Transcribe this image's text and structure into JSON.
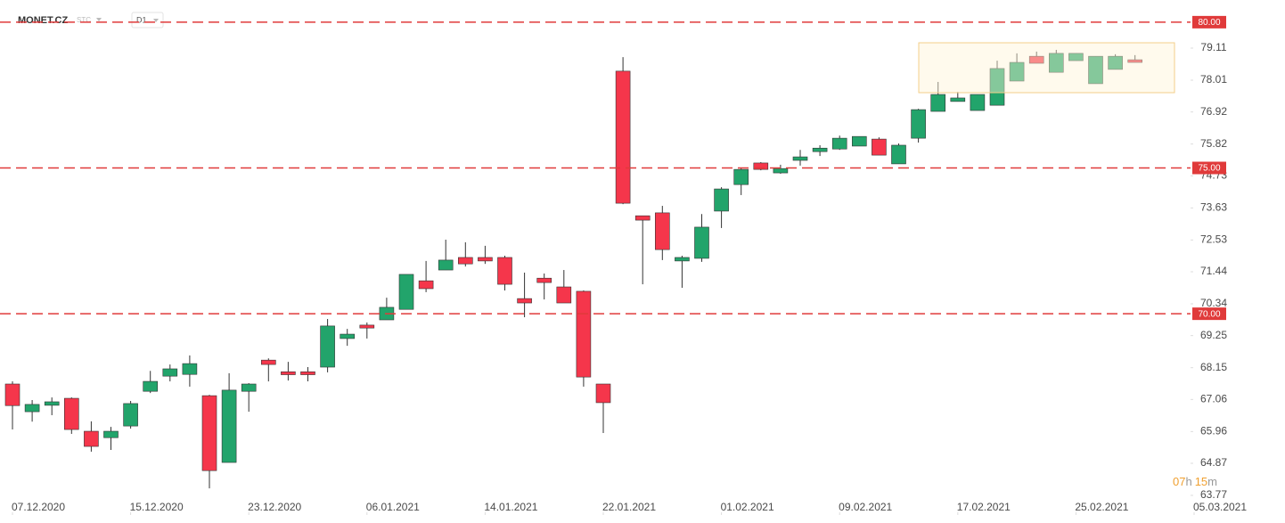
{
  "chart_data": {
    "type": "candlestick",
    "symbol": "MONET.CZ",
    "exchange": "STC",
    "timeframe": "D1",
    "countdown": [
      "07",
      "h",
      "15",
      "m"
    ],
    "up_color": "#22a46b",
    "down_color": "#f5364b",
    "open": [
      67.59,
      66.64,
      66.86,
      67.1,
      65.97,
      65.75,
      66.15,
      67.34,
      67.86,
      67.92,
      67.19,
      64.9,
      67.34,
      68.41,
      68.01,
      68.01,
      68.17,
      69.15,
      69.61,
      69.79,
      70.15,
      71.13,
      71.5,
      71.93,
      71.93,
      71.93,
      70.52,
      71.22,
      70.92,
      70.77,
      67.59,
      78.32,
      73.36,
      73.46,
      71.81,
      71.9,
      73.52,
      74.43,
      75.17,
      74.83,
      75.26,
      75.56,
      75.65,
      75.75,
      75.99,
      75.14,
      76.02,
      76.94,
      77.28,
      76.97,
      77.15,
      77.98,
      78.83,
      78.28,
      78.68,
      77.89,
      78.38,
      78.71
    ],
    "high": [
      67.68,
      67.04,
      67.13,
      67.13,
      66.31,
      66.12,
      67.01,
      68.04,
      68.26,
      68.57,
      67.22,
      67.96,
      67.62,
      68.47,
      68.35,
      68.17,
      69.82,
      69.48,
      69.7,
      70.55,
      71.35,
      71.81,
      72.54,
      72.45,
      72.33,
      71.99,
      71.41,
      71.38,
      71.5,
      70.8,
      67.59,
      78.8,
      73.36,
      73.7,
      71.99,
      73.42,
      74.34,
      75.01,
      75.2,
      75.11,
      75.62,
      75.78,
      76.11,
      76.08,
      76.05,
      75.84,
      77.03,
      77.95,
      77.61,
      77.52,
      78.68,
      78.93,
      78.99,
      79.05,
      78.93,
      78.83,
      78.9,
      78.87
    ],
    "low": [
      66.03,
      66.3,
      66.52,
      65.88,
      65.27,
      65.33,
      66.06,
      67.28,
      67.68,
      67.5,
      64.01,
      64.9,
      66.64,
      67.68,
      67.71,
      67.68,
      67.99,
      68.9,
      69.15,
      69.79,
      70.15,
      70.74,
      71.5,
      71.62,
      71.71,
      70.8,
      69.88,
      70.49,
      70.37,
      67.5,
      65.91,
      73.76,
      71.01,
      71.84,
      70.89,
      71.78,
      72.94,
      74.07,
      74.92,
      74.8,
      75.08,
      75.41,
      75.62,
      75.75,
      75.44,
      75.14,
      75.87,
      76.94,
      77.28,
      76.97,
      77.15,
      77.98,
      78.59,
      78.28,
      78.68,
      77.89,
      78.38,
      78.62
    ],
    "close": [
      66.85,
      66.89,
      66.98,
      66.03,
      65.45,
      65.97,
      66.92,
      67.68,
      68.11,
      68.29,
      64.62,
      67.38,
      67.59,
      68.26,
      67.91,
      67.91,
      69.58,
      69.3,
      69.51,
      70.22,
      71.35,
      70.86,
      71.84,
      71.71,
      71.81,
      71.01,
      70.37,
      71.07,
      70.37,
      67.83,
      66.95,
      73.79,
      73.21,
      72.2,
      71.93,
      72.97,
      74.28,
      74.95,
      74.95,
      74.98,
      75.38,
      75.68,
      76.02,
      76.08,
      75.44,
      75.78,
      77.0,
      77.52,
      77.4,
      77.52,
      78.41,
      78.62,
      78.59,
      78.93,
      78.93,
      78.83,
      78.83,
      78.62
    ],
    "ylim": [
      63.19,
      80.76
    ],
    "yticks": [
      63.77,
      64.87,
      65.96,
      67.06,
      68.15,
      69.25,
      70.34,
      71.44,
      72.53,
      73.63,
      74.73,
      75.82,
      76.92,
      78.01,
      79.11
    ],
    "xticks": [
      {
        "value": 0,
        "label": "07.12.2020"
      },
      {
        "value": 6,
        "label": "15.12.2020"
      },
      {
        "value": 12,
        "label": "23.12.2020"
      },
      {
        "value": 18,
        "label": "06.01.2021"
      },
      {
        "value": 24,
        "label": "14.01.2021"
      },
      {
        "value": 30,
        "label": "22.01.2021"
      },
      {
        "value": 36,
        "label": "01.02.2021"
      },
      {
        "value": 42,
        "label": "09.02.2021"
      },
      {
        "value": 48,
        "label": "17.02.2021"
      },
      {
        "value": 54,
        "label": "25.02.2021"
      },
      {
        "value": 60,
        "label": "05.03.2021"
      }
    ],
    "levels": [
      {
        "value": 80,
        "label": "80.00"
      },
      {
        "value": 75,
        "label": "75.00"
      },
      {
        "value": 70,
        "label": "70.00"
      }
    ],
    "level_color": "#e03a3a"
  }
}
